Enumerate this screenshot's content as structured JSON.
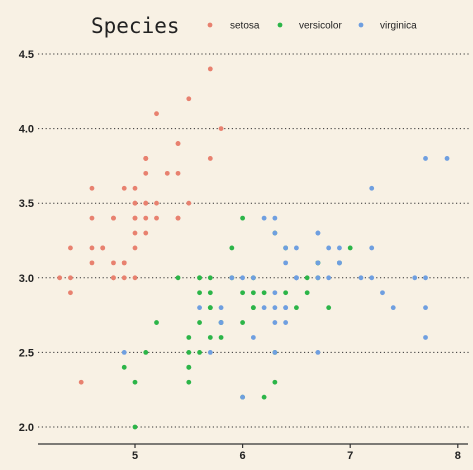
{
  "chart_data": {
    "type": "scatter",
    "title": "",
    "xlabel": "",
    "ylabel": "",
    "xlim": [
      4.2,
      8.05
    ],
    "ylim": [
      1.93,
      4.62
    ],
    "grid": "horizontal-dotted",
    "legend": {
      "position": "top",
      "title": "Species"
    },
    "x_ticks": [
      {
        "value": 5,
        "label": "5"
      },
      {
        "value": 6,
        "label": "6"
      },
      {
        "value": 7,
        "label": "7"
      },
      {
        "value": 8,
        "label": "8"
      }
    ],
    "y_ticks": [
      {
        "value": 2.0,
        "label": "2.0"
      },
      {
        "value": 2.5,
        "label": "2.5"
      },
      {
        "value": 3.0,
        "label": "3.0"
      },
      {
        "value": 3.5,
        "label": "3.5"
      },
      {
        "value": 4.0,
        "label": "4.0"
      },
      {
        "value": 4.5,
        "label": "4.5"
      }
    ],
    "series": [
      {
        "name": "setosa",
        "color": "#e8816f",
        "points": [
          [
            5.1,
            3.5
          ],
          [
            4.9,
            3.0
          ],
          [
            4.7,
            3.2
          ],
          [
            4.6,
            3.1
          ],
          [
            5.0,
            3.6
          ],
          [
            5.4,
            3.9
          ],
          [
            4.6,
            3.4
          ],
          [
            5.0,
            3.4
          ],
          [
            4.4,
            2.9
          ],
          [
            4.9,
            3.1
          ],
          [
            5.4,
            3.7
          ],
          [
            4.8,
            3.4
          ],
          [
            4.8,
            3.0
          ],
          [
            4.3,
            3.0
          ],
          [
            5.8,
            4.0
          ],
          [
            5.7,
            4.4
          ],
          [
            5.4,
            3.9
          ],
          [
            5.1,
            3.5
          ],
          [
            5.7,
            3.8
          ],
          [
            5.1,
            3.8
          ],
          [
            5.4,
            3.4
          ],
          [
            5.1,
            3.7
          ],
          [
            4.6,
            3.6
          ],
          [
            5.1,
            3.3
          ],
          [
            4.8,
            3.4
          ],
          [
            5.0,
            3.0
          ],
          [
            5.0,
            3.4
          ],
          [
            5.2,
            3.5
          ],
          [
            5.2,
            3.4
          ],
          [
            4.7,
            3.2
          ],
          [
            4.8,
            3.1
          ],
          [
            5.4,
            3.4
          ],
          [
            5.2,
            4.1
          ],
          [
            5.5,
            4.2
          ],
          [
            4.9,
            3.1
          ],
          [
            5.0,
            3.2
          ],
          [
            5.5,
            3.5
          ],
          [
            4.9,
            3.6
          ],
          [
            4.4,
            3.0
          ],
          [
            5.1,
            3.4
          ],
          [
            5.0,
            3.5
          ],
          [
            4.5,
            2.3
          ],
          [
            4.4,
            3.2
          ],
          [
            5.0,
            3.5
          ],
          [
            5.1,
            3.8
          ],
          [
            4.8,
            3.0
          ],
          [
            5.1,
            3.8
          ],
          [
            4.6,
            3.2
          ],
          [
            5.3,
            3.7
          ],
          [
            5.0,
            3.3
          ]
        ]
      },
      {
        "name": "versicolor",
        "color": "#2cb548",
        "points": [
          [
            7.0,
            3.2
          ],
          [
            6.4,
            3.2
          ],
          [
            6.9,
            3.1
          ],
          [
            5.5,
            2.3
          ],
          [
            6.5,
            2.8
          ],
          [
            5.7,
            2.8
          ],
          [
            6.3,
            3.3
          ],
          [
            4.9,
            2.4
          ],
          [
            6.6,
            2.9
          ],
          [
            5.2,
            2.7
          ],
          [
            5.0,
            2.0
          ],
          [
            5.9,
            3.0
          ],
          [
            6.0,
            2.2
          ],
          [
            6.1,
            2.9
          ],
          [
            5.6,
            2.9
          ],
          [
            6.7,
            3.1
          ],
          [
            5.6,
            3.0
          ],
          [
            5.8,
            2.7
          ],
          [
            6.2,
            2.2
          ],
          [
            5.6,
            2.5
          ],
          [
            5.9,
            3.2
          ],
          [
            6.1,
            2.8
          ],
          [
            6.3,
            2.5
          ],
          [
            6.1,
            2.8
          ],
          [
            6.4,
            2.9
          ],
          [
            6.6,
            3.0
          ],
          [
            6.8,
            2.8
          ],
          [
            6.7,
            3.0
          ],
          [
            6.0,
            2.9
          ],
          [
            5.7,
            2.6
          ],
          [
            5.5,
            2.4
          ],
          [
            5.5,
            2.4
          ],
          [
            5.8,
            2.7
          ],
          [
            6.0,
            2.7
          ],
          [
            5.4,
            3.0
          ],
          [
            6.0,
            3.4
          ],
          [
            6.7,
            3.1
          ],
          [
            6.3,
            2.3
          ],
          [
            5.6,
            3.0
          ],
          [
            5.5,
            2.5
          ],
          [
            5.5,
            2.6
          ],
          [
            6.1,
            3.0
          ],
          [
            5.8,
            2.6
          ],
          [
            5.0,
            2.3
          ],
          [
            5.6,
            2.7
          ],
          [
            5.7,
            3.0
          ],
          [
            5.7,
            2.9
          ],
          [
            6.2,
            2.9
          ],
          [
            5.1,
            2.5
          ],
          [
            5.7,
            2.8
          ]
        ]
      },
      {
        "name": "virginica",
        "color": "#6f9fe0",
        "points": [
          [
            6.3,
            3.3
          ],
          [
            5.8,
            2.7
          ],
          [
            7.1,
            3.0
          ],
          [
            6.3,
            2.9
          ],
          [
            6.5,
            3.0
          ],
          [
            7.6,
            3.0
          ],
          [
            4.9,
            2.5
          ],
          [
            7.3,
            2.9
          ],
          [
            6.7,
            2.5
          ],
          [
            7.2,
            3.6
          ],
          [
            6.5,
            3.2
          ],
          [
            6.4,
            2.7
          ],
          [
            6.8,
            3.0
          ],
          [
            5.7,
            2.5
          ],
          [
            5.8,
            2.8
          ],
          [
            6.4,
            3.2
          ],
          [
            6.5,
            3.0
          ],
          [
            7.7,
            3.8
          ],
          [
            7.7,
            2.6
          ],
          [
            6.0,
            2.2
          ],
          [
            6.9,
            3.2
          ],
          [
            5.6,
            2.8
          ],
          [
            7.7,
            2.8
          ],
          [
            6.3,
            2.7
          ],
          [
            6.7,
            3.3
          ],
          [
            7.2,
            3.2
          ],
          [
            6.2,
            2.8
          ],
          [
            6.1,
            3.0
          ],
          [
            6.4,
            2.8
          ],
          [
            7.2,
            3.0
          ],
          [
            7.4,
            2.8
          ],
          [
            7.9,
            3.8
          ],
          [
            6.4,
            2.8
          ],
          [
            6.3,
            2.8
          ],
          [
            6.1,
            2.6
          ],
          [
            7.7,
            3.0
          ],
          [
            6.3,
            3.4
          ],
          [
            6.4,
            3.1
          ],
          [
            6.0,
            3.0
          ],
          [
            6.9,
            3.1
          ],
          [
            6.7,
            3.1
          ],
          [
            6.9,
            3.1
          ],
          [
            5.8,
            2.7
          ],
          [
            6.8,
            3.2
          ],
          [
            6.7,
            3.3
          ],
          [
            6.7,
            3.0
          ],
          [
            6.3,
            2.5
          ],
          [
            6.5,
            3.0
          ],
          [
            6.2,
            3.4
          ],
          [
            5.9,
            3.0
          ]
        ]
      }
    ]
  }
}
